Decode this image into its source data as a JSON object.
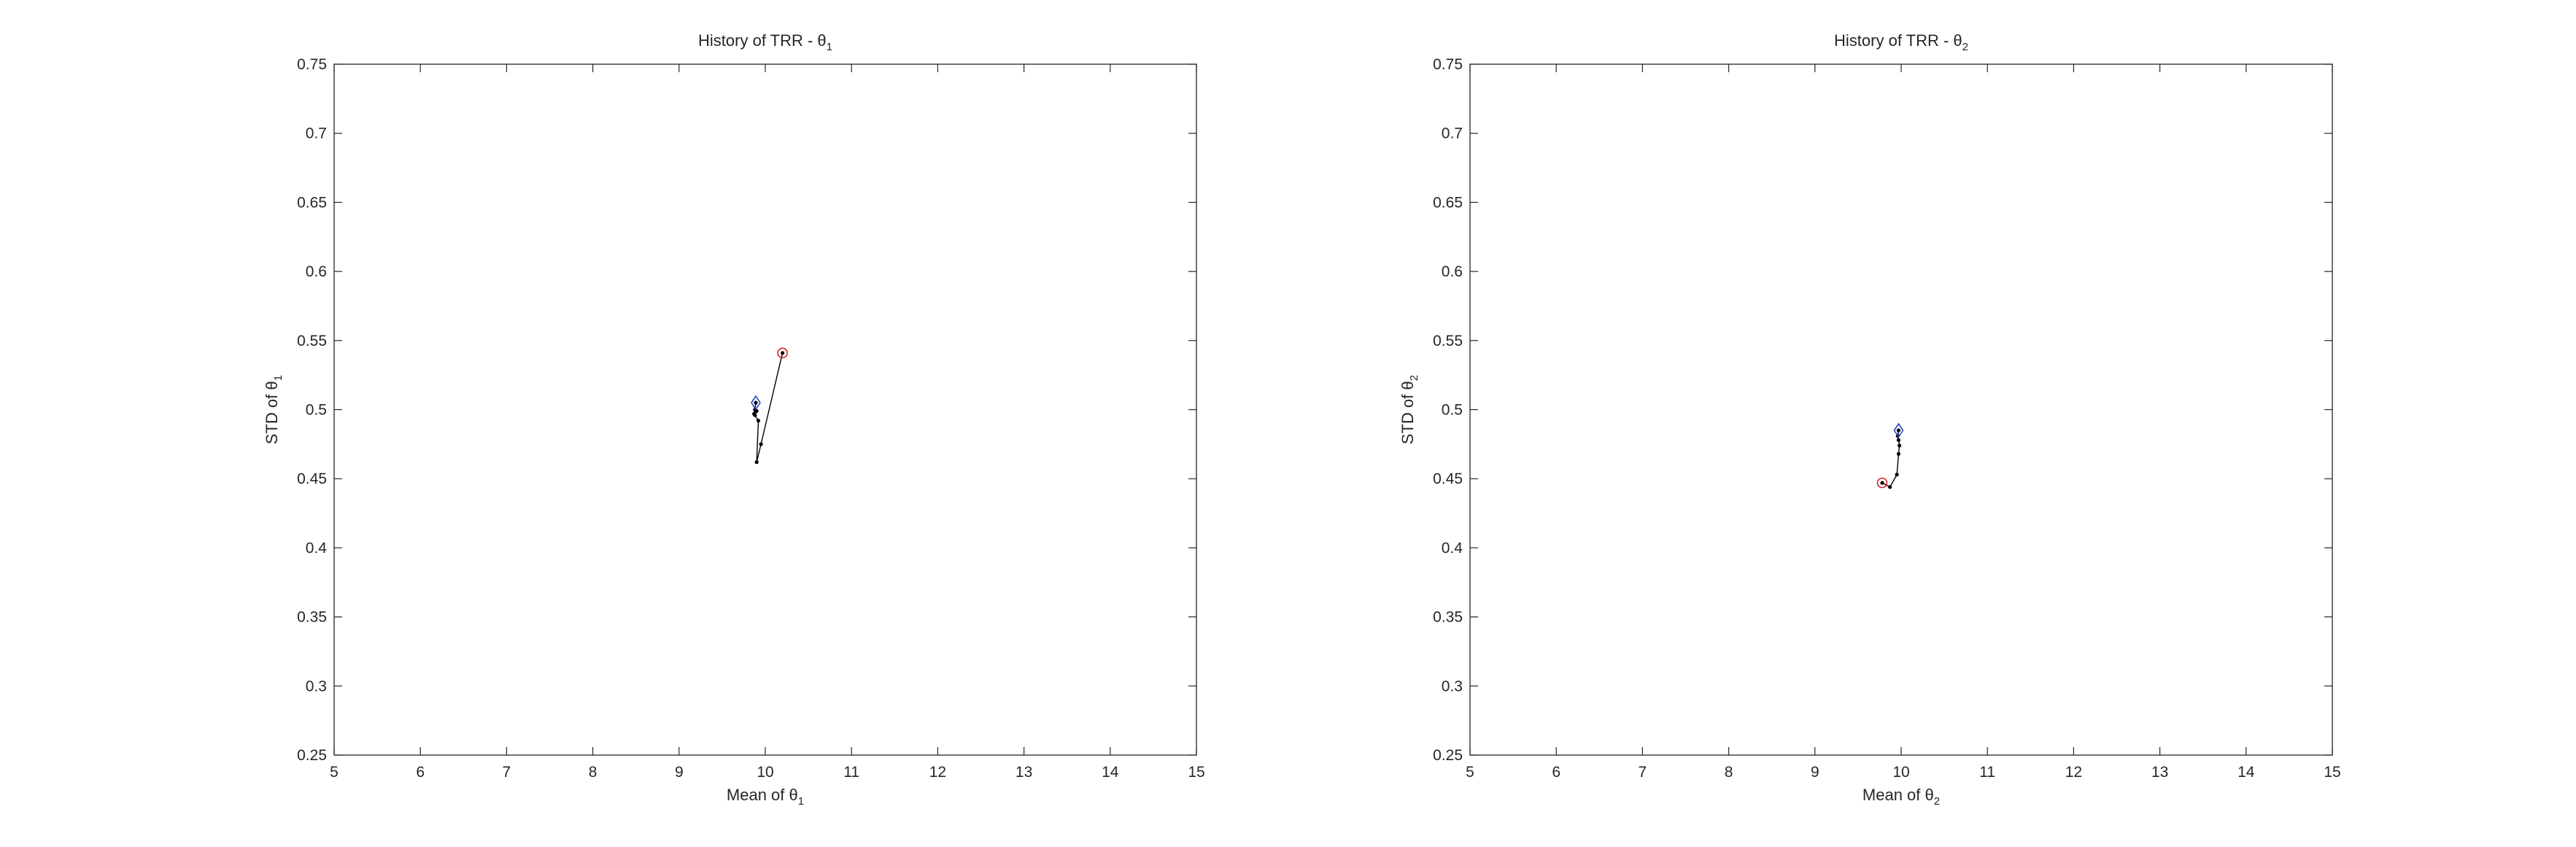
{
  "chart_data": [
    {
      "type": "line",
      "title": "History of TRR - θ",
      "title_subscript": "1",
      "xlabel": "Mean of θ",
      "xlabel_subscript": "1",
      "ylabel": "STD of θ",
      "ylabel_subscript": "1",
      "xlim": [
        5,
        15
      ],
      "ylim": [
        0.25,
        0.75
      ],
      "xticks": [
        5,
        6,
        7,
        8,
        9,
        10,
        11,
        12,
        13,
        14,
        15
      ],
      "yticks": [
        0.25,
        0.3,
        0.35,
        0.4,
        0.45,
        0.5,
        0.55,
        0.6,
        0.65,
        0.7,
        0.75
      ],
      "grid": false,
      "series": [
        {
          "x": [
            10.2,
            9.95,
            9.9,
            9.92,
            9.88,
            9.9,
            9.87,
            9.88,
            9.89
          ],
          "y": [
            0.541,
            0.475,
            0.462,
            0.492,
            0.496,
            0.499,
            0.497,
            0.5,
            0.505
          ],
          "color": "#000000",
          "marker": "dot"
        }
      ],
      "start_marker": {
        "x": 10.2,
        "y": 0.541,
        "shape": "circle",
        "color": "#d62728"
      },
      "end_marker": {
        "x": 9.89,
        "y": 0.505,
        "shape": "diamond",
        "color": "#1f3fbf"
      }
    },
    {
      "type": "line",
      "title": "History of TRR - θ",
      "title_subscript": "2",
      "xlabel": "Mean of θ",
      "xlabel_subscript": "2",
      "ylabel": "STD of θ",
      "ylabel_subscript": "2",
      "xlim": [
        5,
        15
      ],
      "ylim": [
        0.25,
        0.75
      ],
      "xticks": [
        5,
        6,
        7,
        8,
        9,
        10,
        11,
        12,
        13,
        14,
        15
      ],
      "yticks": [
        0.25,
        0.3,
        0.35,
        0.4,
        0.45,
        0.5,
        0.55,
        0.6,
        0.65,
        0.7,
        0.75
      ],
      "grid": false,
      "series": [
        {
          "x": [
            9.78,
            9.87,
            9.95,
            9.97,
            9.98,
            9.97,
            9.96,
            9.97
          ],
          "y": [
            0.447,
            0.444,
            0.453,
            0.468,
            0.474,
            0.478,
            0.481,
            0.485
          ],
          "color": "#000000",
          "marker": "dot"
        }
      ],
      "start_marker": {
        "x": 9.78,
        "y": 0.447,
        "shape": "circle",
        "color": "#d62728"
      },
      "end_marker": {
        "x": 9.97,
        "y": 0.485,
        "shape": "diamond",
        "color": "#1f3fbf"
      }
    }
  ]
}
